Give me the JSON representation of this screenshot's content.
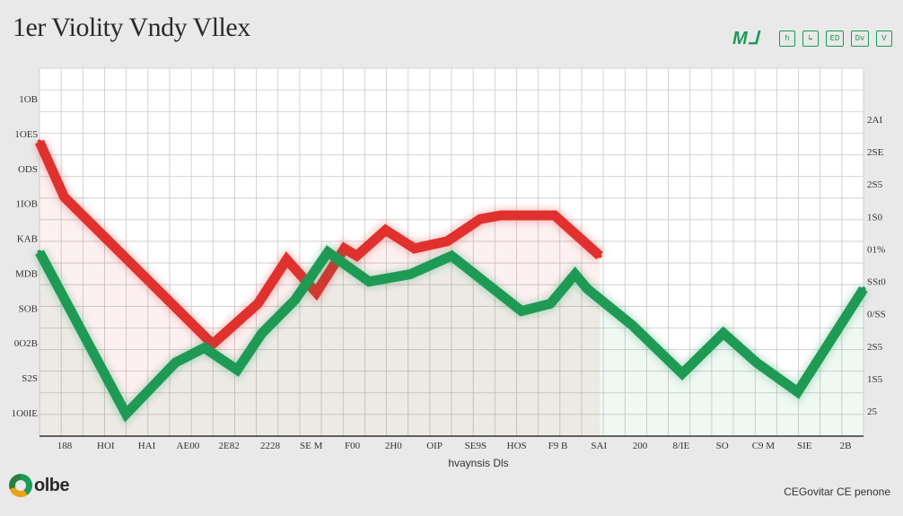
{
  "title": "1er Violity Vndy Vllex",
  "toolbar": {
    "logo": "M ⅃",
    "buttons": [
      {
        "label": "h",
        "icon": "h-icon"
      },
      {
        "label": "↳",
        "icon": "corner-arrow-icon"
      },
      {
        "label": "ED",
        "icon": "ed-icon"
      },
      {
        "label": "Dv",
        "icon": "dv-icon"
      },
      {
        "label": "V",
        "icon": "v-icon"
      }
    ]
  },
  "footer": {
    "logo_text": "olbe",
    "right_text": "CEGovitar CE penone"
  },
  "colors": {
    "up": "#1e9a55",
    "down": "#e0312e",
    "grid": "#c9c9c9",
    "background": "#e9e9ea",
    "plot_background": "#ffffff"
  },
  "chart_data": {
    "type": "line",
    "title": "1er Violity Vndy Vllex",
    "xlabel": "hvaynsis Dls",
    "ylabel": "",
    "xlim": [
      0,
      100
    ],
    "ylim": [
      0,
      100
    ],
    "grid": true,
    "legend": "none",
    "x_tick_labels": [
      "188",
      "HOI",
      "HAI",
      "AE00",
      "2E82",
      "2228",
      "SE M",
      "F00",
      "2H0",
      "OIP",
      "SE9S",
      "HOS",
      "F9 B",
      "SAI",
      "200",
      "8/IE",
      "SO",
      "C9 M",
      "SIE",
      "2B"
    ],
    "left_tick_labels": [
      "1OB",
      "1OE5",
      "ODS",
      "1IOB",
      "KAB",
      "MDB",
      "SOB",
      "0O2B",
      "S2S",
      "1O0IE"
    ],
    "right_tick_labels": [
      "2AI",
      "2SE",
      "2S5",
      "1S0",
      "01%",
      "SSt0",
      "0/SS",
      "2S5",
      "1S5",
      "25"
    ],
    "series": [
      {
        "color": "#e0312e",
        "x": [
          0,
          3,
          21,
          26.5,
          30,
          33.6,
          37,
          38.5,
          42,
          45.5,
          49.5,
          53.5,
          56,
          62.5,
          65,
          68
        ],
        "y": [
          80,
          65,
          25,
          36,
          48,
          39,
          51,
          49,
          56,
          51,
          53,
          59,
          60,
          60,
          55,
          49
        ]
      },
      {
        "color": "#1e9a55",
        "x": [
          0,
          10.5,
          16.5,
          20,
          24,
          27,
          31,
          35,
          40,
          45,
          50,
          58.5,
          62,
          65,
          66.5,
          72,
          78,
          83,
          87,
          92,
          96,
          100
        ],
        "y": [
          50,
          6,
          20,
          24,
          18,
          28,
          37,
          50,
          42,
          44,
          49,
          34,
          36,
          44,
          40,
          30,
          17,
          28,
          20,
          12,
          26,
          40
        ]
      }
    ]
  }
}
